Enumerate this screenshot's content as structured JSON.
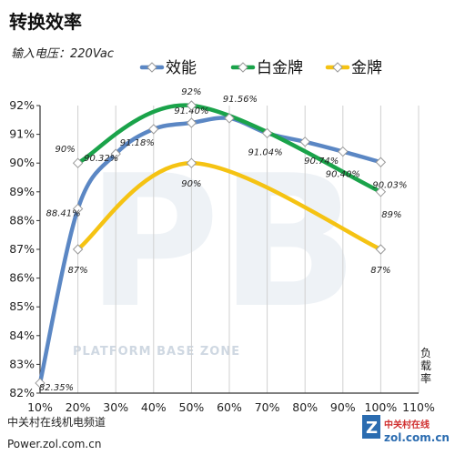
{
  "title": "转换效率",
  "subtitle": "输入电压：220Vac",
  "colors": {
    "axis": "#333333",
    "grid": "#d0d0d0"
  },
  "watermark": {
    "text": "PLATFORM BASE ZONE",
    "glyph": "PB"
  },
  "footer": {
    "line1": "中关村在线机电频道",
    "line2": "Power.zol.com.cn"
  },
  "logo": {
    "badge": "Z",
    "cn": "中关村在线",
    "url": "zol.com.cn"
  },
  "chart_data": {
    "type": "line",
    "title": "转换效率",
    "subtitle": "输入电压：220Vac",
    "ylabel": "负载率",
    "x_ticks": [
      "10%",
      "20%",
      "30%",
      "40%",
      "50%",
      "60%",
      "70%",
      "80%",
      "90%",
      "100%",
      "110%"
    ],
    "y_ticks": [
      "82%",
      "83%",
      "84%",
      "85%",
      "86%",
      "87%",
      "88%",
      "89%",
      "90%",
      "91%",
      "92%"
    ],
    "xlim": [
      10,
      110
    ],
    "ylim": [
      82,
      92
    ],
    "grid": "vertical",
    "legend_position": "top",
    "series": [
      {
        "name": "效能",
        "color": "#5b87c4",
        "x": [
          10,
          20,
          30,
          40,
          50,
          60,
          70,
          80,
          90,
          100
        ],
        "y": [
          82.35,
          88.41,
          90.32,
          91.18,
          91.4,
          91.56,
          91.04,
          90.74,
          90.4,
          90.03
        ],
        "labels": [
          "82.35%",
          "88.41%",
          "90.32%",
          "91.18%",
          "91.40%",
          "91.56%",
          "91.04%",
          "90.74%",
          "90.40%",
          "90.03%"
        ]
      },
      {
        "name": "白金牌",
        "color": "#1aa34a",
        "x": [
          20,
          50,
          100
        ],
        "y": [
          90,
          92,
          89
        ],
        "labels": [
          "90%",
          "92%",
          "89%"
        ]
      },
      {
        "name": "金牌",
        "color": "#f5c313",
        "x": [
          20,
          50,
          100
        ],
        "y": [
          87,
          90,
          87
        ],
        "labels": [
          "87%",
          "90%",
          "87%"
        ]
      }
    ]
  }
}
